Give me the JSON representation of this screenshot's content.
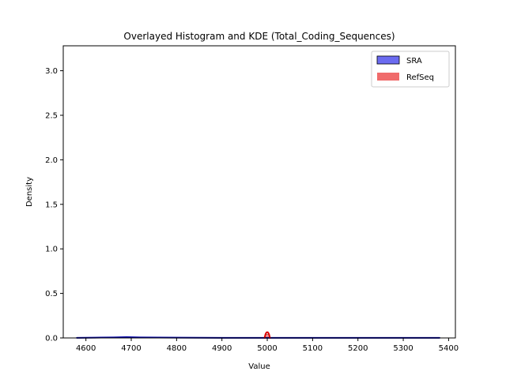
{
  "chart_data": {
    "type": "histogram",
    "title": "Overlayed Histogram and KDE (Total_Coding_Sequences)",
    "xlabel": "Value",
    "ylabel": "Density",
    "xlim": [
      4550,
      5415
    ],
    "ylim": [
      0,
      3.28
    ],
    "xticks": [
      4600,
      4700,
      4800,
      4900,
      5000,
      5100,
      5200,
      5300,
      5400
    ],
    "yticks": [
      0.0,
      0.5,
      1.0,
      1.5,
      2.0,
      2.5,
      3.0
    ],
    "xtick_labels": [
      "4600",
      "4700",
      "4800",
      "4900",
      "5000",
      "5100",
      "5200",
      "5300",
      "5400"
    ],
    "ytick_labels": [
      "0.0",
      "0.5",
      "1.0",
      "1.5",
      "2.0",
      "2.5",
      "3.0"
    ],
    "legend": {
      "position": "top-right",
      "entries": [
        "SRA",
        "RefSeq"
      ]
    },
    "series": [
      {
        "name": "SRA",
        "color": "#0000ff",
        "bar_fill": "#6b6bf0",
        "kde_color": "#0000aa",
        "hist_bins": [
          {
            "x0": 4580,
            "x1": 4680,
            "density": 0.002
          },
          {
            "x0": 4680,
            "x1": 4700,
            "density": 0.012
          },
          {
            "x0": 4700,
            "x1": 5380,
            "density": 0.0005
          }
        ],
        "kde": {
          "x": [
            4580,
            4620,
            4660,
            4690,
            4700,
            4720,
            4760,
            4800,
            4850,
            4900,
            5000,
            5100,
            5200,
            5300,
            5380
          ],
          "y": [
            0.001,
            0.003,
            0.006,
            0.009,
            0.008,
            0.006,
            0.004,
            0.003,
            0.002,
            0.0015,
            0.001,
            0.001,
            0.001,
            0.001,
            0.001
          ]
        }
      },
      {
        "name": "RefSeq",
        "color": "#ff0000",
        "bar_fill": "#f06b6b",
        "kde_color": "#dd0000",
        "hist_bins": [
          {
            "x0": 4996,
            "x1": 5004,
            "density": 0.04
          }
        ],
        "kde": {
          "x": [
            4994,
            4996,
            4998,
            5000,
            5002,
            5004,
            5006
          ],
          "y": [
            0.0,
            0.04,
            0.06,
            0.065,
            0.06,
            0.04,
            0.0
          ]
        }
      }
    ]
  }
}
